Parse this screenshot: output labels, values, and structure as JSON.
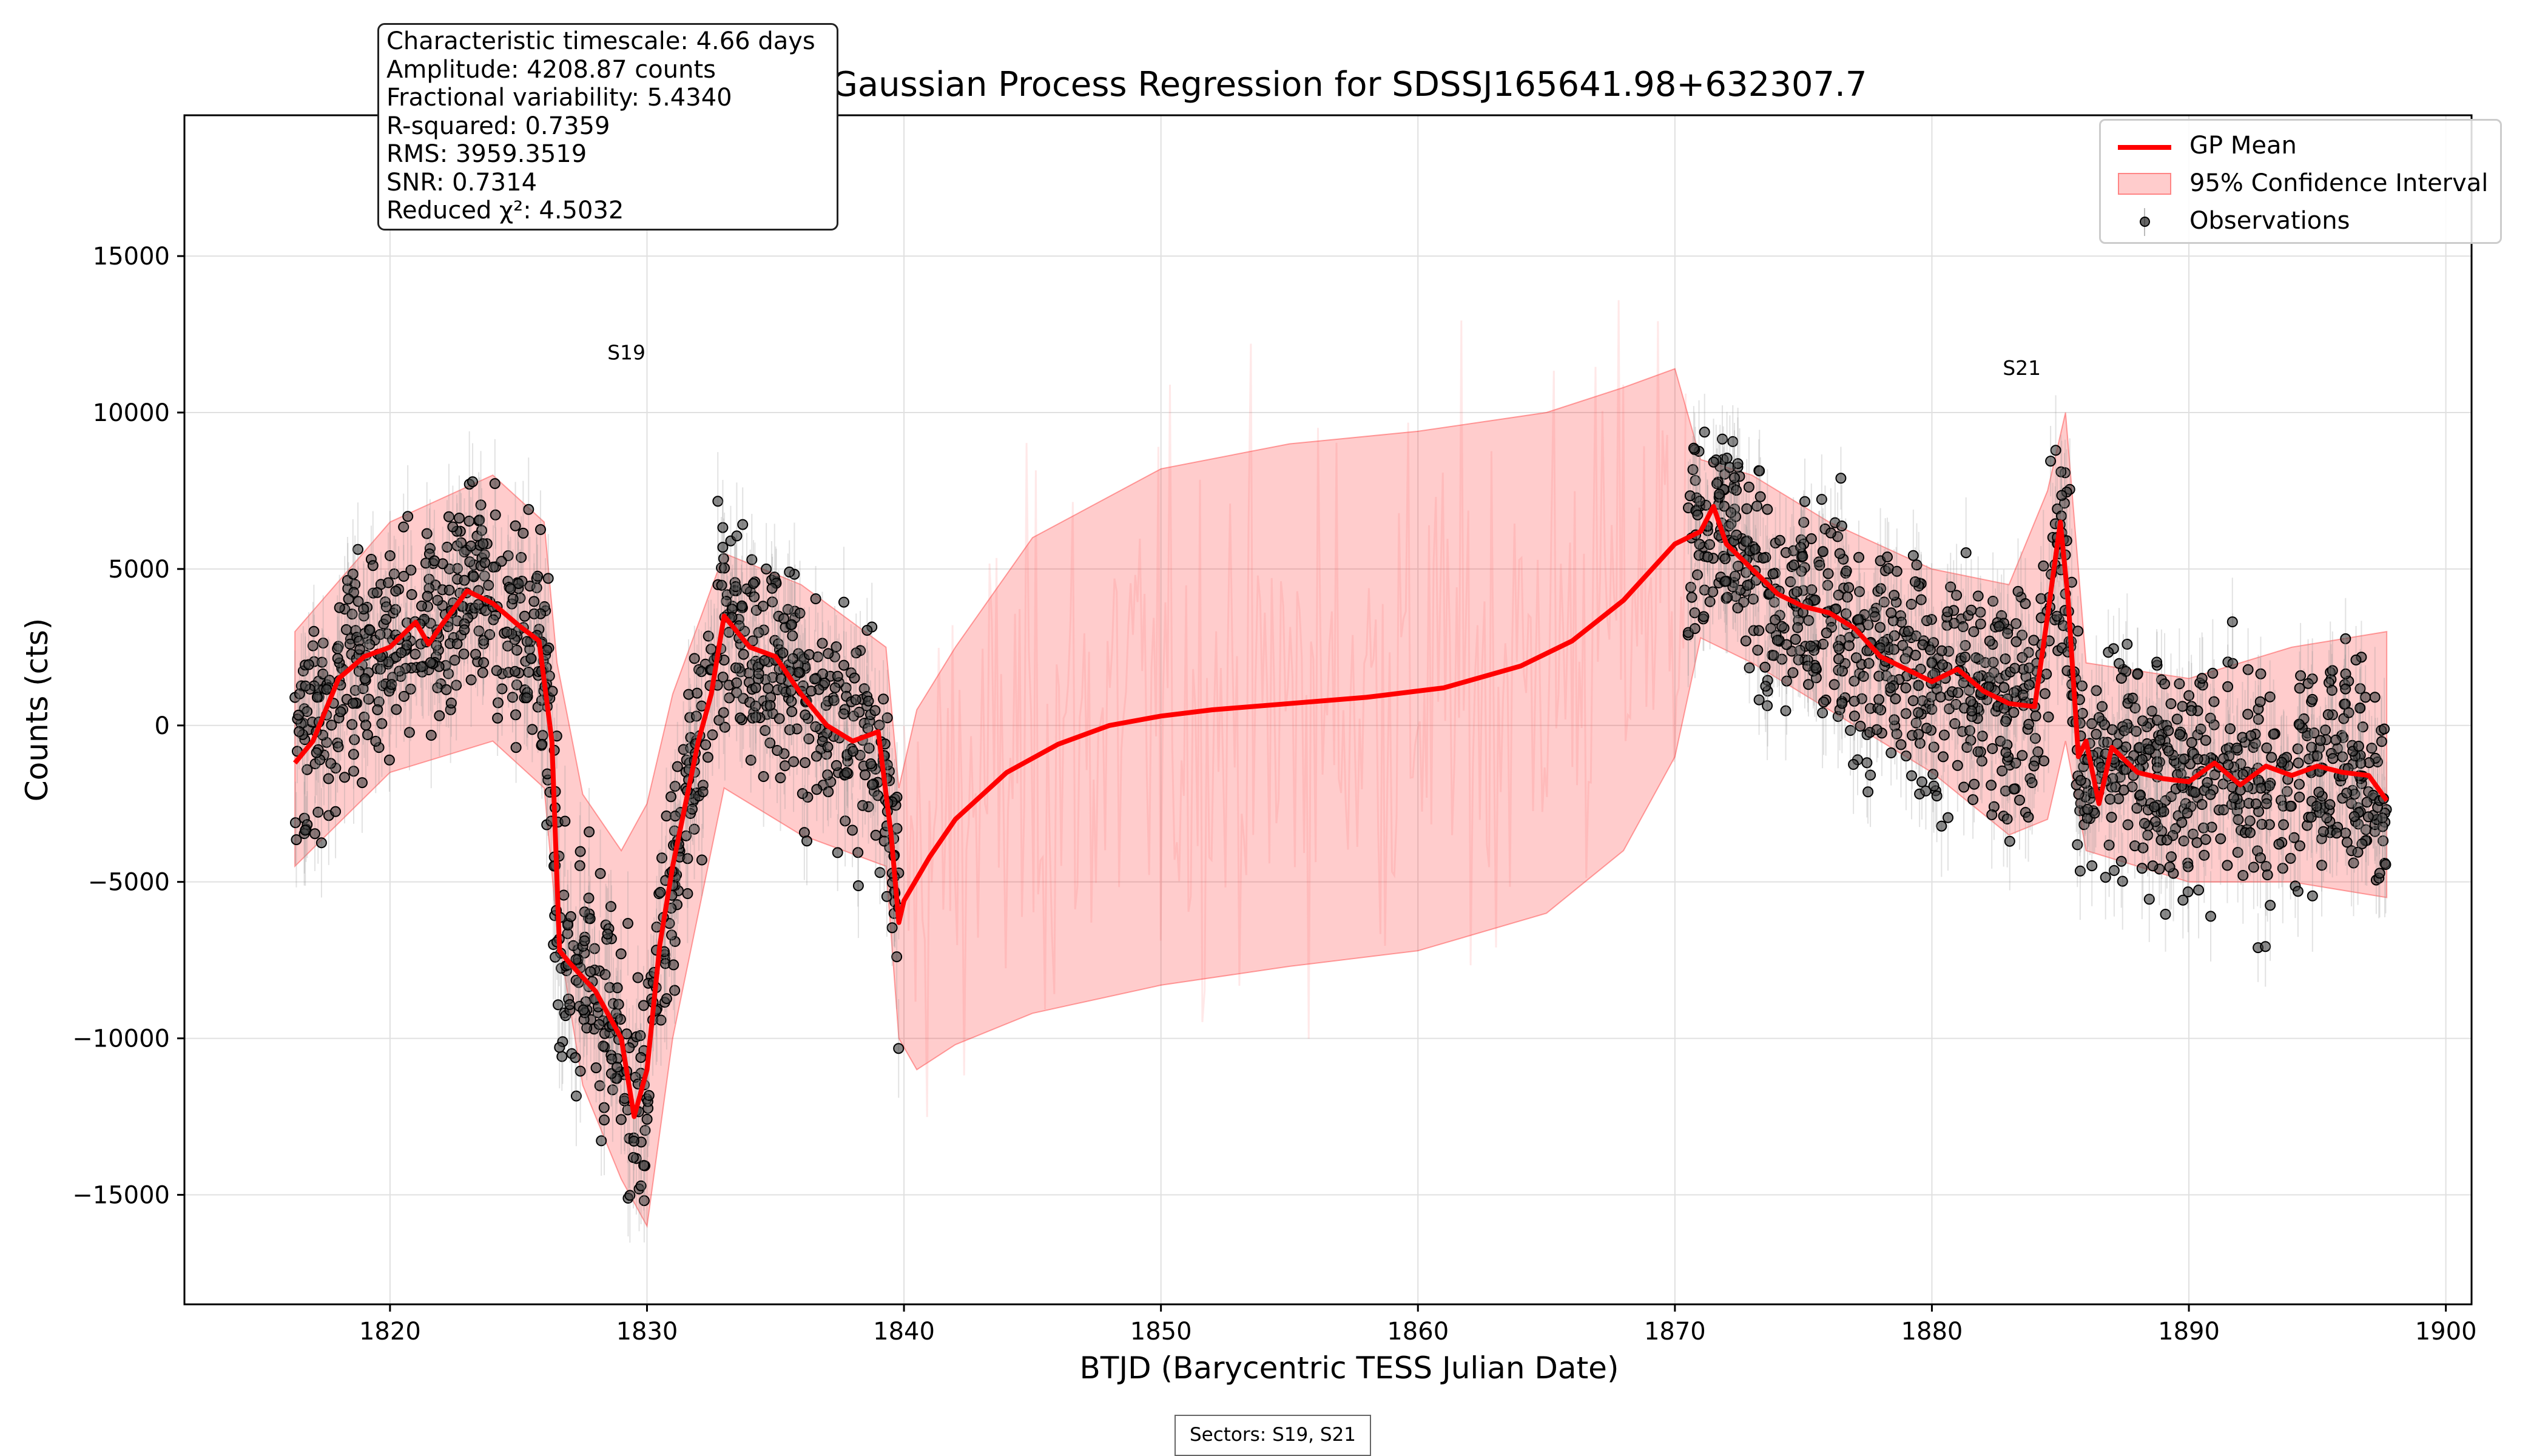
{
  "chart_data": {
    "type": "line",
    "title": "Gaussian Process Regression for SDSSJ165641.98+632307.7",
    "xlabel": "BTJD (Barycentric TESS Julian Date)",
    "ylabel": "Counts (cts)",
    "xlim": [
      1812,
      1901
    ],
    "ylim": [
      -18500,
      19500
    ],
    "xticks": [
      1820,
      1830,
      1840,
      1850,
      1860,
      1870,
      1880,
      1890,
      1900
    ],
    "yticks": [
      -15000,
      -10000,
      -5000,
      0,
      5000,
      10000,
      15000
    ],
    "xtick_labels": [
      "1820",
      "1830",
      "1840",
      "1850",
      "1860",
      "1870",
      "1880",
      "1890",
      "1900"
    ],
    "ytick_labels": [
      "−15000",
      "−10000",
      "−5000",
      "0",
      "5000",
      "10000",
      "15000"
    ],
    "grid": true,
    "legend_placement": "top-right",
    "series": [
      {
        "name": "GP Mean",
        "color": "#ff0000",
        "x": [
          1816.3,
          1817,
          1818,
          1819,
          1820,
          1821,
          1821.5,
          1822,
          1823,
          1824,
          1825,
          1825.8,
          1826.3,
          1826.6,
          1827,
          1828,
          1829,
          1829.5,
          1830,
          1830.5,
          1831,
          1831.5,
          1832,
          1832.5,
          1833,
          1834,
          1835,
          1836,
          1837,
          1838,
          1839,
          1839.5,
          1839.8,
          1840,
          1841,
          1842,
          1844,
          1846,
          1848,
          1850,
          1852,
          1855,
          1858,
          1861,
          1864,
          1866,
          1868,
          1870,
          1871,
          1871.5,
          1872,
          1873,
          1874,
          1875,
          1876,
          1877,
          1878,
          1879,
          1880,
          1881,
          1882,
          1883,
          1884,
          1884.5,
          1885,
          1885.3,
          1885.7,
          1886,
          1886.5,
          1887,
          1888,
          1889,
          1890,
          1891,
          1892,
          1893,
          1894,
          1895,
          1896,
          1897,
          1897.7
        ],
        "y": [
          -1200,
          -500,
          1500,
          2200,
          2500,
          3300,
          2600,
          3200,
          4300,
          3900,
          3200,
          2700,
          -500,
          -7200,
          -7600,
          -8500,
          -10000,
          -12500,
          -11000,
          -7000,
          -4500,
          -2500,
          -500,
          1000,
          3500,
          2500,
          2200,
          1000,
          0,
          -500,
          -200,
          -3500,
          -6300,
          -5600,
          -4200,
          -3000,
          -1500,
          -600,
          0,
          300,
          500,
          700,
          900,
          1200,
          1900,
          2700,
          4000,
          5800,
          6200,
          7000,
          5800,
          5000,
          4200,
          3800,
          3600,
          3100,
          2200,
          1800,
          1400,
          1800,
          1100,
          700,
          600,
          3500,
          6500,
          4000,
          -1000,
          -500,
          -2500,
          -700,
          -1500,
          -1700,
          -1800,
          -1200,
          -1900,
          -1300,
          -1600,
          -1300,
          -1500,
          -1600,
          -2400
        ]
      },
      {
        "name": "95% Confidence Interval",
        "color": "rgba(255,0,0,0.2)",
        "x": [
          1816.3,
          1820,
          1824,
          1826,
          1826.5,
          1827.5,
          1829,
          1830,
          1831,
          1833,
          1836,
          1839.3,
          1839.8,
          1840.5,
          1842,
          1845,
          1850,
          1855,
          1860,
          1865,
          1868,
          1870,
          1871,
          1873,
          1876,
          1880,
          1883,
          1884.5,
          1885.2,
          1886,
          1890,
          1894,
          1897.7
        ],
        "upper": [
          3000,
          6500,
          8000,
          6500,
          2000,
          -2200,
          -4000,
          -2500,
          1000,
          5500,
          4500,
          2500,
          -2000,
          500,
          2500,
          6000,
          8200,
          9000,
          9400,
          10000,
          10800,
          11400,
          8500,
          8000,
          6500,
          5000,
          4500,
          7500,
          10000,
          2000,
          1500,
          2500,
          3000
        ],
        "lower": [
          -4500,
          -1500,
          -500,
          -2000,
          -6500,
          -11500,
          -14500,
          -16000,
          -10000,
          -2000,
          -3500,
          -4500,
          -10000,
          -11000,
          -10200,
          -9200,
          -8300,
          -7700,
          -7200,
          -6000,
          -4000,
          -1000,
          2800,
          2000,
          500,
          -1500,
          -3500,
          -3000,
          -500,
          -4000,
          -5000,
          -5000,
          -5500
        ]
      },
      {
        "name": "Observations",
        "color": "#000000",
        "marker": "o",
        "segments": [
          [
            1816.3,
            1826.3
          ],
          [
            1826.3,
            1831.5
          ],
          [
            1831.5,
            1839.8
          ],
          [
            1870.5,
            1885.5
          ],
          [
            1885.5,
            1897.7
          ]
        ]
      }
    ],
    "annotations": [
      {
        "text": "S19",
        "x": 1829.2,
        "y": 11700
      },
      {
        "text": "S21",
        "x": 1883.5,
        "y": 11200
      }
    ]
  },
  "stats_box": {
    "line1": "Characteristic timescale: 4.66 days",
    "line2": "Amplitude: 4208.87 counts",
    "line3": "Fractional variability: 5.4340",
    "line4": "R-squared: 0.7359",
    "line5": "RMS: 3959.3519",
    "line6": "SNR: 0.7314",
    "line7": "Reduced χ²: 4.5032"
  },
  "sectors_note": "Sectors: S19, S21"
}
